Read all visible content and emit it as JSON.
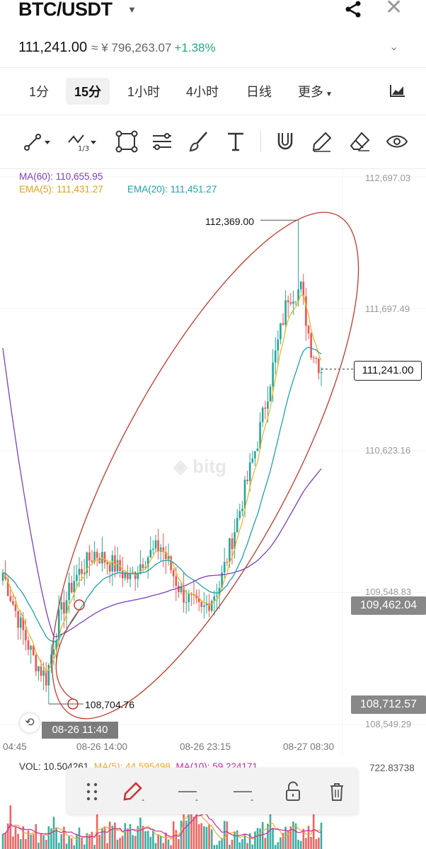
{
  "header": {
    "pair": "BTC/USDT",
    "price": "111,241.00",
    "price_cny": "≈ ¥ 796,263.07",
    "change": "+1.38%"
  },
  "timeframes": [
    {
      "label": "1分"
    },
    {
      "label": "15分"
    },
    {
      "label": "1小时"
    },
    {
      "label": "4小时"
    },
    {
      "label": "日线"
    },
    {
      "label": "更多"
    }
  ],
  "active_timeframe": "15分",
  "toolbar_icons": [
    "line-tool-icon",
    "wave-tool-icon",
    "shape-tool-icon",
    "fib-tool-icon",
    "brush-tool-icon",
    "text-tool-icon",
    "magnet-icon",
    "pencil-icon",
    "eraser-icon",
    "eye-icon"
  ],
  "legend": {
    "ma60": "MA(60): 110,655.95",
    "ema5": "EMA(5): 111,431.27",
    "ema20": "EMA(20): 111,451.27"
  },
  "colors": {
    "up": "#26a69a",
    "down": "#ef5350",
    "ma60": "#7b3fbf",
    "ema5": "#f0b429",
    "ema20": "#1fa2a8",
    "annotation": "#c0392b"
  },
  "y_axis_labels": [
    "112,697.03",
    "111,697.49",
    "110,623.16",
    "109,548.83",
    "108,549.29"
  ],
  "y_tags": {
    "tag_high": "109,462.04",
    "tag_low": "108,712.57",
    "last_price": "111,241.00"
  },
  "annotations": {
    "high": "112,369.00",
    "low": "108,704.76"
  },
  "x_axis_labels": [
    "04:45",
    "08-26 14:00",
    "08-26 23:15",
    "08-27 08:30"
  ],
  "crosshair_time": "08-26 11:40",
  "volume": {
    "label": "VOL: 10.504261",
    "ma5": "MA(5): 44.595498",
    "ma10": "MA(10): 59.224171",
    "max": "722.83738"
  },
  "chart_data": {
    "type": "candlestick",
    "ylim": [
      108549.29,
      112697.03
    ],
    "y_ticks": [
      112697.03,
      111697.49,
      110623.16,
      109548.83,
      108549.29
    ],
    "last_price": 111241.0,
    "annotated_high": 112369.0,
    "annotated_low": 108704.76,
    "indicators": [
      "MA(60)",
      "EMA(5)",
      "EMA(20)"
    ],
    "volume_panel": {
      "max": 722.83738
    }
  }
}
